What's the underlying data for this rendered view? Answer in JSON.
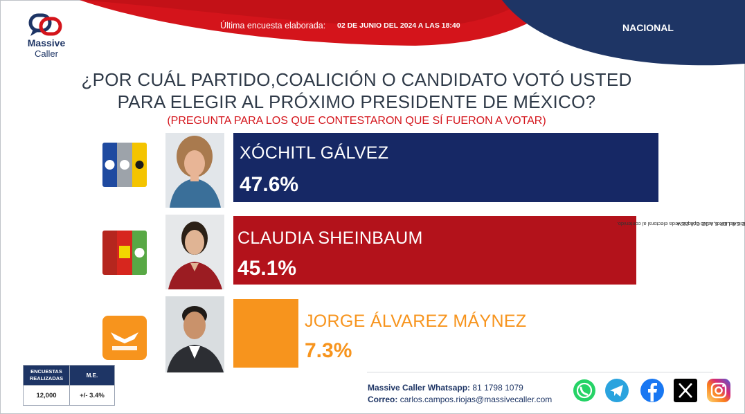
{
  "header": {
    "brand": "Massive Caller",
    "brand_line1": "Massive",
    "brand_line2": "Caller",
    "survey_label": "Última encuesta elaborada:",
    "survey_date": "02 DE JUNIO DEL 2024 A LAS 18:40",
    "scope": "NACIONAL"
  },
  "question": {
    "line1": "¿POR CUÁL PARTIDO,COALICIÓN O CANDIDATO VOTÓ USTED",
    "line2": "PARA ELEGIR AL PRÓXIMO PRESIDENTE DE MÉXICO?",
    "note": "(PREGUNTA PARA LOS QUE CONTESTARON QUE SÍ FUERON A VOTAR)"
  },
  "chart_data": {
    "type": "bar",
    "orientation": "horizontal",
    "categories": [
      "XÓCHITL GÁLVEZ",
      "CLAUDIA SHEINBAUM",
      "JORGE ÁLVAREZ MÁYNEZ"
    ],
    "values": [
      47.6,
      45.1,
      7.3
    ],
    "labels": [
      "47.6%",
      "45.1%",
      "7.3%"
    ],
    "colors": [
      "#162865",
      "#b3121b",
      "#f7941d"
    ],
    "label_colors": [
      "#ffffff",
      "#ffffff",
      "#f7941d"
    ],
    "party_logos": [
      [
        "PAN",
        "PRI",
        "PRD"
      ],
      [
        "morena",
        "PT",
        "VERDE"
      ],
      [
        "MOVIMIENTO CIUDADANO"
      ]
    ]
  },
  "methodology": {
    "encuestas_header": "ENCUESTAS REALIZADAS",
    "me_header": "M.E.",
    "encuestas_value": "12,000",
    "me_value": "+/- 3.4%"
  },
  "legal": {
    "line1": "D.R. (C) MASSIVE CALLER S.A DE C.V. 2024",
    "line2": "Se autoriza la reproducción al hacer referencia del autor, salvo aplique veda electoral al contenido."
  },
  "footer": {
    "whatsapp_label": "Massive Caller Whatsapp:",
    "whatsapp_number": "81 1798 1079",
    "email_label": "Correo:",
    "email": "carlos.campos.riojas@massivecaller.com"
  },
  "social": {
    "icons": [
      "whatsapp-icon",
      "telegram-icon",
      "facebook-icon",
      "x-icon",
      "instagram-icon"
    ],
    "colors": [
      "#25d366",
      "#2aa3de",
      "#1877f2",
      "#000000",
      "#d6249f"
    ]
  }
}
